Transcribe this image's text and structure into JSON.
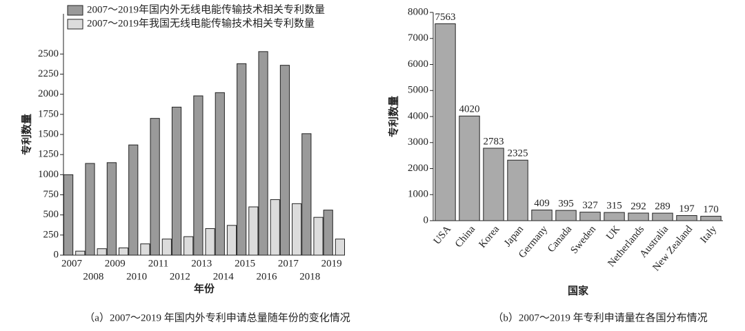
{
  "chart_data": [
    {
      "type": "bar",
      "caption": "（a）2007～2019 年国内外专利申请总量随年份的变化情况",
      "x_label": "年份",
      "y_label": "专利数量",
      "categories": [
        "2007",
        "2008",
        "2009",
        "2010",
        "2011",
        "2012",
        "2013",
        "2014",
        "2015",
        "2016",
        "2017",
        "2018",
        "2019"
      ],
      "series": [
        {
          "name": "2007～2019年国内外无线电能传输技术相关专利数量",
          "color": "#9a9a9a",
          "values": [
            1000,
            1140,
            1150,
            1370,
            1700,
            1840,
            1980,
            2020,
            2380,
            2530,
            2360,
            1510,
            560
          ]
        },
        {
          "name": "2007～2019年我国无线电能传输技术相关专利数量",
          "color": "#dcdcdc",
          "values": [
            50,
            80,
            90,
            140,
            200,
            230,
            330,
            370,
            600,
            690,
            640,
            470,
            200
          ]
        }
      ],
      "ylim": [
        0,
        3000
      ],
      "yticks": [
        0,
        250,
        500,
        750,
        1000,
        1250,
        1500,
        1750,
        2000,
        2250,
        2500
      ]
    },
    {
      "type": "bar",
      "caption": "（b）2007～2019 年专利申请量在各国分布情况",
      "x_label": "国家",
      "y_label": "专利数量",
      "categories": [
        "USA",
        "China",
        "Korea",
        "Japan",
        "Germany",
        "Canada",
        "Sweden",
        "UK",
        "Netherlands",
        "Australia",
        "New Zealand",
        "Italy"
      ],
      "values": [
        7563,
        4020,
        2783,
        2325,
        409,
        395,
        327,
        315,
        292,
        289,
        197,
        170
      ],
      "color": "#aaaaaa",
      "ylim": [
        0,
        8000
      ],
      "yticks": [
        0,
        1000,
        2000,
        3000,
        4000,
        5000,
        6000,
        7000,
        8000
      ]
    }
  ]
}
